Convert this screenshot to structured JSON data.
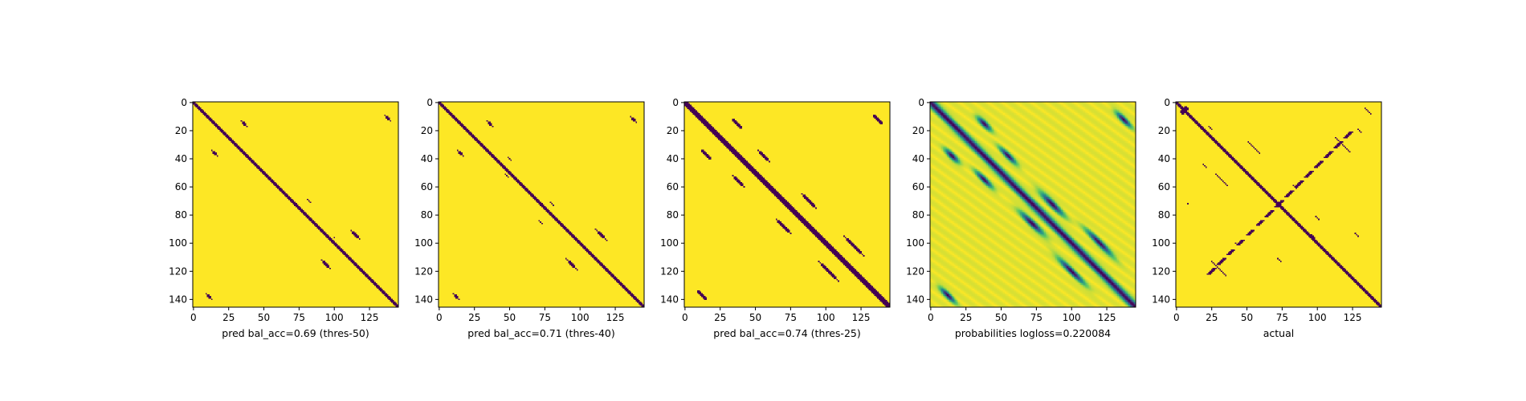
{
  "chart_data": [
    {
      "type": "heatmap",
      "xlabel": "pred bal_acc=0.69 (thres-50)",
      "ylabel": "",
      "size": 146,
      "xticks": [
        0,
        25,
        50,
        75,
        100,
        125
      ],
      "yticks": [
        0,
        20,
        40,
        60,
        80,
        100,
        120,
        140
      ],
      "xlim": [
        0,
        146
      ],
      "ylim": [
        146,
        0
      ],
      "binary": true,
      "diag_halfwidth": 1.4,
      "blobs": [
        {
          "x": 15,
          "y": 36,
          "len": 5,
          "w": 1.3
        },
        {
          "x": 36,
          "y": 15,
          "len": 5,
          "w": 1.3
        },
        {
          "x": 48,
          "y": 49,
          "len": 2,
          "w": 1.0
        },
        {
          "x": 82,
          "y": 70,
          "len": 3,
          "w": 0.8
        },
        {
          "x": 100,
          "y": 96,
          "len": 2,
          "w": 0.8
        },
        {
          "x": 115,
          "y": 94,
          "len": 8,
          "w": 1.2
        },
        {
          "x": 94,
          "y": 115,
          "len": 8,
          "w": 1.2
        },
        {
          "x": 138,
          "y": 11,
          "len": 5,
          "w": 1.2
        },
        {
          "x": 11,
          "y": 138,
          "len": 5,
          "w": 1.2
        }
      ]
    },
    {
      "type": "heatmap",
      "xlabel": "pred bal_acc=0.71 (thres-40)",
      "ylabel": "",
      "size": 146,
      "xticks": [
        0,
        25,
        50,
        75,
        100,
        125
      ],
      "yticks": [
        0,
        20,
        40,
        60,
        80,
        100,
        120,
        140
      ],
      "xlim": [
        0,
        146
      ],
      "ylim": [
        146,
        0
      ],
      "binary": true,
      "diag_halfwidth": 1.6,
      "blobs": [
        {
          "x": 15,
          "y": 36,
          "len": 5,
          "w": 1.4
        },
        {
          "x": 36,
          "y": 15,
          "len": 5,
          "w": 1.4
        },
        {
          "x": 50,
          "y": 40,
          "len": 3,
          "w": 1.0
        },
        {
          "x": 48,
          "y": 52,
          "len": 4,
          "w": 1.0
        },
        {
          "x": 80,
          "y": 72,
          "len": 4,
          "w": 0.9
        },
        {
          "x": 72,
          "y": 85,
          "len": 3,
          "w": 0.9
        },
        {
          "x": 115,
          "y": 94,
          "len": 9,
          "w": 1.3
        },
        {
          "x": 94,
          "y": 115,
          "len": 9,
          "w": 1.3
        },
        {
          "x": 138,
          "y": 12,
          "len": 5,
          "w": 1.3
        },
        {
          "x": 12,
          "y": 138,
          "len": 5,
          "w": 1.3
        }
      ]
    },
    {
      "type": "heatmap",
      "xlabel": "pred bal_acc=0.74 (thres-25)",
      "ylabel": "",
      "size": 146,
      "xticks": [
        0,
        25,
        50,
        75,
        100,
        125
      ],
      "yticks": [
        0,
        20,
        40,
        60,
        80,
        100,
        120,
        140
      ],
      "xlim": [
        0,
        146
      ],
      "ylim": [
        146,
        0
      ],
      "binary": true,
      "diag_halfwidth": 2.2,
      "blobs": [
        {
          "x": 15,
          "y": 37,
          "len": 8,
          "w": 2.0
        },
        {
          "x": 37,
          "y": 15,
          "len": 8,
          "w": 2.0
        },
        {
          "x": 56,
          "y": 38,
          "len": 9,
          "w": 1.5
        },
        {
          "x": 38,
          "y": 56,
          "len": 9,
          "w": 1.5
        },
        {
          "x": 88,
          "y": 70,
          "len": 12,
          "w": 1.4
        },
        {
          "x": 70,
          "y": 88,
          "len": 12,
          "w": 1.4
        },
        {
          "x": 25,
          "y": 25,
          "len": 6,
          "w": 3.0
        },
        {
          "x": 47,
          "y": 47,
          "len": 5,
          "w": 2.6
        },
        {
          "x": 108,
          "y": 108,
          "len": 5,
          "w": 2.6
        },
        {
          "x": 120,
          "y": 102,
          "len": 16,
          "w": 1.4
        },
        {
          "x": 102,
          "y": 120,
          "len": 16,
          "w": 1.4
        },
        {
          "x": 137,
          "y": 12,
          "len": 8,
          "w": 1.6
        },
        {
          "x": 12,
          "y": 137,
          "len": 8,
          "w": 1.6
        }
      ]
    },
    {
      "type": "heatmap",
      "xlabel": "probabilities logloss=0.220084",
      "ylabel": "",
      "size": 146,
      "xticks": [
        0,
        25,
        50,
        75,
        100,
        125
      ],
      "yticks": [
        0,
        20,
        40,
        60,
        80,
        100,
        120,
        140
      ],
      "xlim": [
        0,
        146
      ],
      "ylim": [
        146,
        0
      ],
      "binary": false,
      "colormap": "viridis",
      "diag_halfwidth": 2.5,
      "blobs": [
        {
          "x": 15,
          "y": 38,
          "len": 8,
          "w": 2.4
        },
        {
          "x": 38,
          "y": 15,
          "len": 8,
          "w": 2.4
        },
        {
          "x": 55,
          "y": 38,
          "len": 10,
          "w": 2.2
        },
        {
          "x": 38,
          "y": 55,
          "len": 10,
          "w": 2.2
        },
        {
          "x": 86,
          "y": 72,
          "len": 14,
          "w": 2.6
        },
        {
          "x": 72,
          "y": 86,
          "len": 14,
          "w": 2.6
        },
        {
          "x": 120,
          "y": 100,
          "len": 16,
          "w": 2.4
        },
        {
          "x": 100,
          "y": 120,
          "len": 16,
          "w": 2.4
        },
        {
          "x": 137,
          "y": 12,
          "len": 9,
          "w": 2.2
        },
        {
          "x": 12,
          "y": 137,
          "len": 9,
          "w": 2.2
        }
      ]
    },
    {
      "type": "heatmap",
      "xlabel": "actual",
      "ylabel": "",
      "size": 146,
      "xticks": [
        0,
        25,
        50,
        75,
        100,
        125
      ],
      "yticks": [
        0,
        20,
        40,
        60,
        80,
        100,
        120,
        140
      ],
      "xlim": [
        0,
        146
      ],
      "ylim": [
        146,
        0
      ],
      "binary": true,
      "diag_halfwidth": 1.4,
      "anti_diagonal": true,
      "blobs": [
        {
          "x": 7,
          "y": 4,
          "len": 4,
          "w": 1.2
        },
        {
          "x": 4,
          "y": 7,
          "len": 4,
          "w": 1.2
        },
        {
          "x": 32,
          "y": 55,
          "len": 10,
          "w": 1.0
        },
        {
          "x": 55,
          "y": 32,
          "len": 10,
          "w": 1.0
        },
        {
          "x": 24,
          "y": 18,
          "len": 3,
          "w": 1.0
        },
        {
          "x": 20,
          "y": 45,
          "len": 3,
          "w": 0.9
        },
        {
          "x": 8,
          "y": 72,
          "len": 2,
          "w": 0.9
        },
        {
          "x": 42,
          "y": 100,
          "len": 2,
          "w": 0.9
        },
        {
          "x": 30,
          "y": 118,
          "len": 12,
          "w": 1.0
        },
        {
          "x": 118,
          "y": 30,
          "len": 12,
          "w": 1.0
        },
        {
          "x": 84,
          "y": 60,
          "len": 4,
          "w": 0.9
        },
        {
          "x": 100,
          "y": 82,
          "len": 3,
          "w": 0.9
        },
        {
          "x": 136,
          "y": 6,
          "len": 6,
          "w": 1.0
        },
        {
          "x": 130,
          "y": 20,
          "len": 4,
          "w": 1.0
        },
        {
          "x": 128,
          "y": 94,
          "len": 3,
          "w": 0.9
        },
        {
          "x": 97,
          "y": 95,
          "len": 3,
          "w": 0.9
        },
        {
          "x": 73,
          "y": 112,
          "len": 3,
          "w": 0.9
        },
        {
          "x": 140,
          "y": 140,
          "len": 4,
          "w": 1.3
        }
      ]
    }
  ],
  "colors": {
    "low": "#440154",
    "high": "#fde725",
    "axis": "#000000",
    "background": "#ffffff"
  }
}
